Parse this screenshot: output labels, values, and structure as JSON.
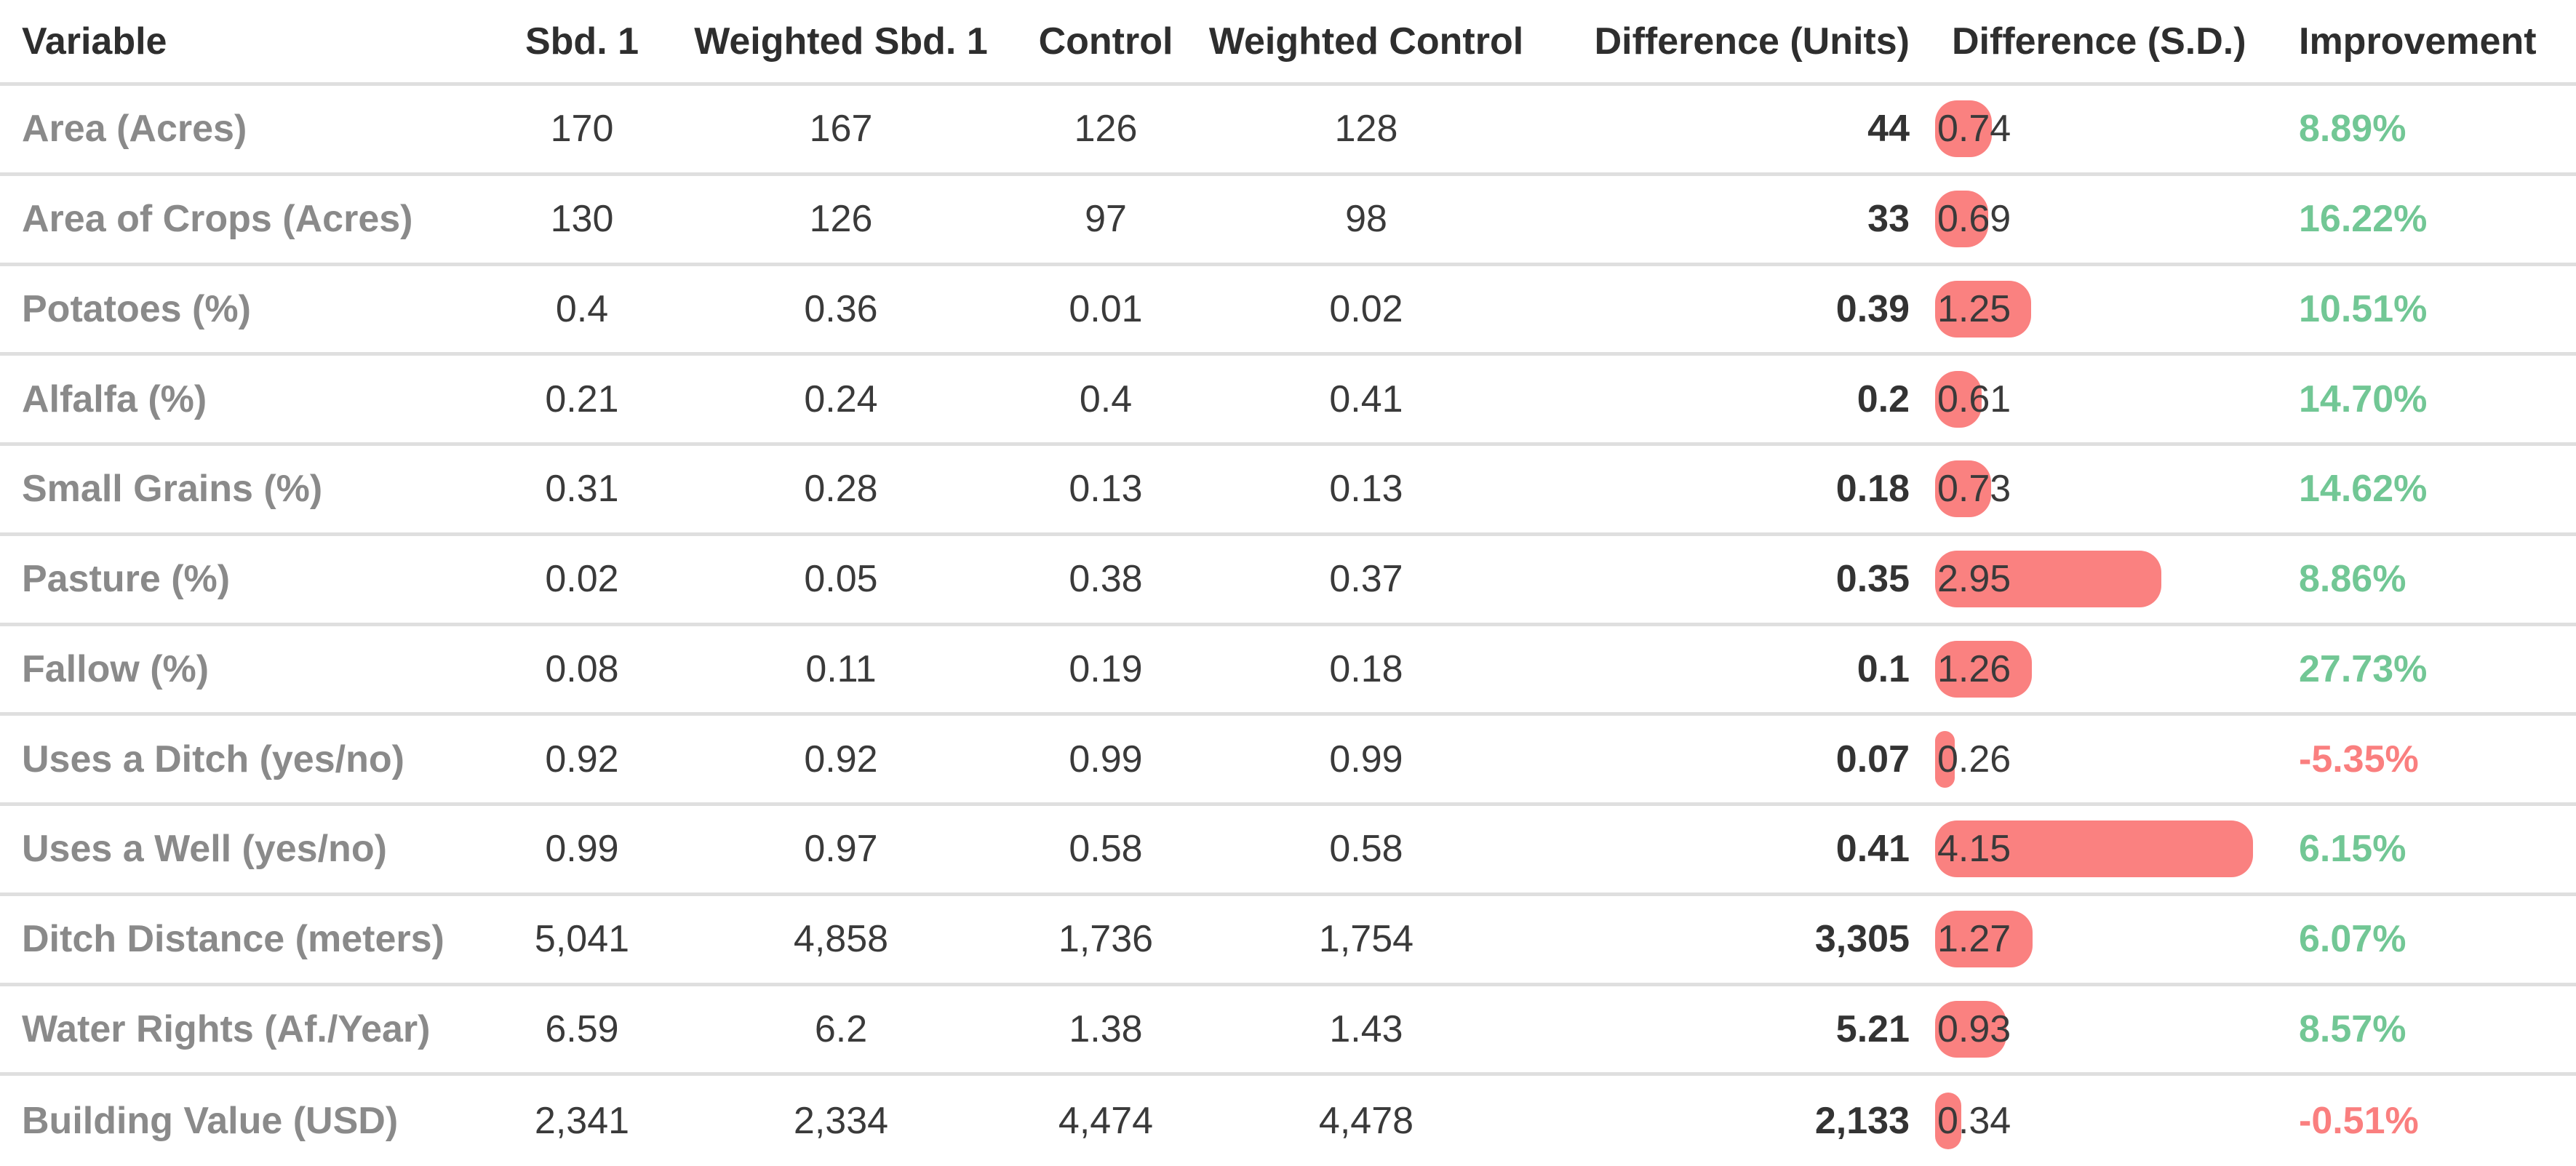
{
  "colors": {
    "bar": "#fa8180",
    "positive_text": "#72c795",
    "negative_text": "#fa7f7f",
    "label_text": "#8a8a8a",
    "value_text": "#3a3a3a",
    "header_text": "#2e2e2e",
    "divider": "#dfdfdf",
    "background": "#ffffff"
  },
  "chart_data": {
    "type": "table",
    "columns": [
      {
        "key": "variable",
        "label": "Variable"
      },
      {
        "key": "sbd1",
        "label": "Sbd. 1"
      },
      {
        "key": "wsbd1",
        "label": "Weighted Sbd. 1"
      },
      {
        "key": "control",
        "label": "Control"
      },
      {
        "key": "wcontrol",
        "label": "Weighted Control"
      },
      {
        "key": "diff_units",
        "label": "Difference (Units)"
      },
      {
        "key": "diff_sd",
        "label": "Difference (S.D.)"
      },
      {
        "key": "improvement",
        "label": "Improvement"
      }
    ],
    "sd_bar_unit_note": "red pill bar width is proportional to Difference (S.D.) value",
    "rows": [
      {
        "variable": "Area (Acres)",
        "sbd1": "170",
        "wsbd1": "167",
        "control": "126",
        "wcontrol": "128",
        "diff_units": "44",
        "diff_sd": "0.74",
        "diff_sd_value": 0.74,
        "improvement": "8.89%"
      },
      {
        "variable": "Area of Crops (Acres)",
        "sbd1": "130",
        "wsbd1": "126",
        "control": "97",
        "wcontrol": "98",
        "diff_units": "33",
        "diff_sd": "0.69",
        "diff_sd_value": 0.69,
        "improvement": "16.22%"
      },
      {
        "variable": "Potatoes (%)",
        "sbd1": "0.4",
        "wsbd1": "0.36",
        "control": "0.01",
        "wcontrol": "0.02",
        "diff_units": "0.39",
        "diff_sd": "1.25",
        "diff_sd_value": 1.25,
        "improvement": "10.51%"
      },
      {
        "variable": "Alfalfa (%)",
        "sbd1": "0.21",
        "wsbd1": "0.24",
        "control": "0.4",
        "wcontrol": "0.41",
        "diff_units": "0.2",
        "diff_sd": "0.61",
        "diff_sd_value": 0.61,
        "improvement": "14.70%"
      },
      {
        "variable": "Small Grains (%)",
        "sbd1": "0.31",
        "wsbd1": "0.28",
        "control": "0.13",
        "wcontrol": "0.13",
        "diff_units": "0.18",
        "diff_sd": "0.73",
        "diff_sd_value": 0.73,
        "improvement": "14.62%"
      },
      {
        "variable": "Pasture (%)",
        "sbd1": "0.02",
        "wsbd1": "0.05",
        "control": "0.38",
        "wcontrol": "0.37",
        "diff_units": "0.35",
        "diff_sd": "2.95",
        "diff_sd_value": 2.95,
        "improvement": "8.86%"
      },
      {
        "variable": "Fallow (%)",
        "sbd1": "0.08",
        "wsbd1": "0.11",
        "control": "0.19",
        "wcontrol": "0.18",
        "diff_units": "0.1",
        "diff_sd": "1.26",
        "diff_sd_value": 1.26,
        "improvement": "27.73%"
      },
      {
        "variable": "Uses a Ditch (yes/no)",
        "sbd1": "0.92",
        "wsbd1": "0.92",
        "control": "0.99",
        "wcontrol": "0.99",
        "diff_units": "0.07",
        "diff_sd": "0.26",
        "diff_sd_value": 0.26,
        "improvement": "-5.35%"
      },
      {
        "variable": "Uses a Well (yes/no)",
        "sbd1": "0.99",
        "wsbd1": "0.97",
        "control": "0.58",
        "wcontrol": "0.58",
        "diff_units": "0.41",
        "diff_sd": "4.15",
        "diff_sd_value": 4.15,
        "improvement": "6.15%"
      },
      {
        "variable": "Ditch Distance (meters)",
        "sbd1": "5,041",
        "wsbd1": "4,858",
        "control": "1,736",
        "wcontrol": "1,754",
        "diff_units": "3,305",
        "diff_sd": "1.27",
        "diff_sd_value": 1.27,
        "improvement": "6.07%"
      },
      {
        "variable": "Water Rights (Af./Year)",
        "sbd1": "6.59",
        "wsbd1": "6.2",
        "control": "1.38",
        "wcontrol": "1.43",
        "diff_units": "5.21",
        "diff_sd": "0.93",
        "diff_sd_value": 0.93,
        "improvement": "8.57%"
      },
      {
        "variable": "Building Value (USD)",
        "sbd1": "2,341",
        "wsbd1": "2,334",
        "control": "4,474",
        "wcontrol": "4,478",
        "diff_units": "2,133",
        "diff_sd": "0.34",
        "diff_sd_value": 0.34,
        "improvement": "-0.51%"
      }
    ]
  }
}
